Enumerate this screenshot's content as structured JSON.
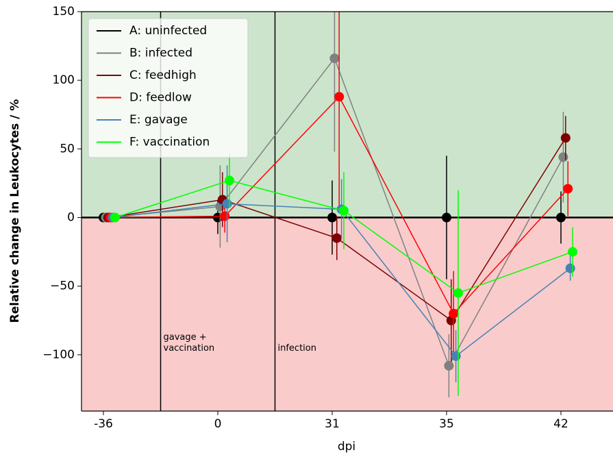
{
  "chart_data": {
    "type": "line",
    "xlabel": "dpi",
    "ylabel": "Relative change in Leukocytes / %",
    "categories": [
      "-36",
      "0",
      "31",
      "35",
      "42"
    ],
    "ylim": [
      -141,
      150
    ],
    "yticks": [
      {
        "value": -100,
        "label": "−100"
      },
      {
        "value": -50,
        "label": "−50"
      },
      0,
      50,
      100,
      150
    ],
    "background": {
      "above_zero": "#cce4cc",
      "below_zero": "#f9cbcb"
    },
    "legend": "upper left",
    "annotations": [
      {
        "text": [
          "gavage +",
          "vaccination"
        ]
      },
      {
        "text": [
          "infection"
        ]
      }
    ],
    "series": [
      {
        "name": "A: uninfected",
        "color": "#000000",
        "values": [
          0,
          0,
          0,
          0,
          0
        ],
        "errors": [
          0,
          12,
          27,
          45,
          19
        ]
      },
      {
        "name": "B: infected",
        "color": "#808080",
        "values": [
          0,
          8,
          116,
          -108,
          44
        ],
        "errors": [
          0,
          30,
          68,
          23,
          33
        ]
      },
      {
        "name": "C: feedhigh",
        "color": "#800000",
        "values": [
          0,
          13,
          -15,
          -75,
          58
        ],
        "errors": [
          0,
          20,
          16,
          30,
          16
        ]
      },
      {
        "name": "D: feedlow",
        "color": "#ff0000",
        "values": [
          0,
          1,
          88,
          -70,
          21
        ],
        "errors": [
          0,
          12,
          80,
          31,
          20
        ]
      },
      {
        "name": "E: gavage",
        "color": "#4682b4",
        "values": [
          0,
          10,
          6,
          -101,
          -37
        ],
        "errors": [
          0,
          28,
          22,
          19,
          9
        ]
      },
      {
        "name": "F: vaccination",
        "color": "#00ff00",
        "values": [
          0,
          27,
          5,
          -55,
          -25
        ],
        "errors": [
          0,
          20,
          28,
          75,
          18
        ]
      }
    ]
  }
}
